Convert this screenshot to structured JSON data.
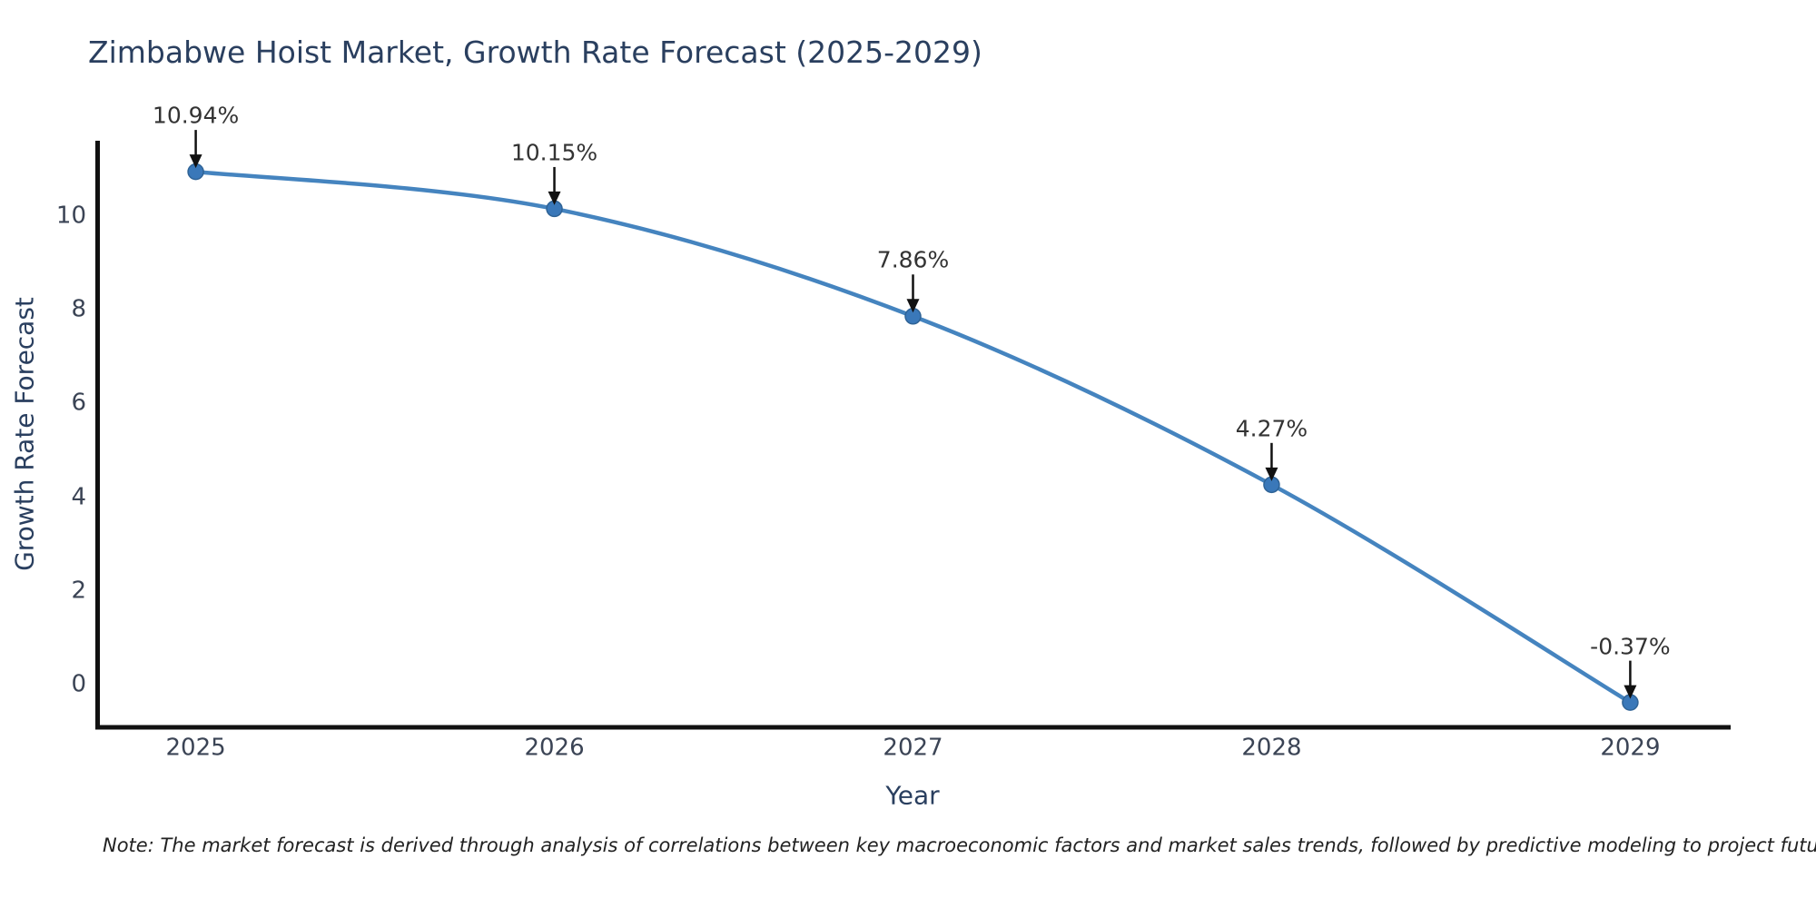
{
  "chart_data": {
    "type": "line",
    "title": "Zimbabwe Hoist Market, Growth Rate Forecast (2025-2029)",
    "xlabel": "Year",
    "ylabel": "Growth Rate Forecast",
    "x": [
      2025,
      2026,
      2027,
      2028,
      2029
    ],
    "values": [
      10.94,
      10.15,
      7.86,
      4.27,
      -0.37
    ],
    "point_labels": [
      "10.94%",
      "10.15%",
      "7.86%",
      "4.27%",
      "-0.37%"
    ],
    "yticks": [
      0,
      2,
      4,
      6,
      8,
      10
    ],
    "xlim": [
      2024.72,
      2029.28
    ],
    "ylim": [
      -0.9,
      11.6
    ],
    "grid": false,
    "legend": "none",
    "line_shape": "spline",
    "line_color": "#4584bf",
    "marker_color": "#3a78b9",
    "marker_edge_color": "#2f6396",
    "axis_color": "#111111",
    "arrow_color": "#111111",
    "annotation_color": "#333333",
    "title_color": "#2a3f5f",
    "tick_color": "#3b4455"
  },
  "note": {
    "text": "Note: The market forecast is derived through analysis of correlations between key macroeconomic factors and market sales trends, followed by predictive modeling to project future sales"
  }
}
